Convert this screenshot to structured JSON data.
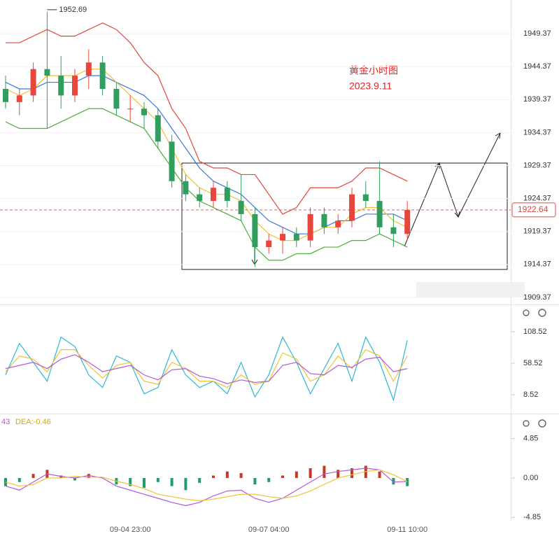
{
  "chart_data": [
    {
      "type": "candlestick",
      "open": [
        1941,
        1939,
        1940,
        1944,
        1943,
        1940,
        1943,
        1945,
        1941,
        1938,
        1938,
        1937,
        1933,
        1927,
        1925,
        1924,
        1926,
        1924,
        1922,
        1917,
        1918,
        1919,
        1918,
        1922,
        1920,
        1921,
        1925,
        1924,
        1920,
        1919
      ],
      "high": [
        1943,
        1941,
        1945,
        1952.69,
        1946,
        1944,
        1947,
        1946,
        1942,
        1940,
        1939,
        1938,
        1934,
        1928,
        1926,
        1927,
        1927,
        1928,
        1923,
        1919,
        1920,
        1920,
        1923,
        1923,
        1922,
        1926,
        1927,
        1930,
        1922,
        1924
      ],
      "low": [
        1938,
        1937,
        1939,
        1935,
        1938,
        1939,
        1941,
        1940,
        1937,
        1936,
        1935,
        1932,
        1926,
        1924,
        1923,
        1923,
        1923,
        1921,
        1914,
        1916,
        1916,
        1917,
        1917,
        1919,
        1919,
        1920,
        1923,
        1919,
        1917,
        1918
      ],
      "close": [
        1939,
        1940,
        1944,
        1943,
        1940,
        1943,
        1945,
        1941,
        1938,
        1938,
        1937,
        1933,
        1927,
        1925,
        1924,
        1926,
        1924,
        1922,
        1917,
        1918,
        1919,
        1918,
        1922,
        1920,
        1921,
        1925,
        1924,
        1920,
        1919,
        1922.64
      ],
      "up_color": "#e8453c",
      "down_color": "#2f9e5f",
      "series": [
        {
          "color": "#e0483d",
          "values": [
            1948,
            1948,
            1949,
            1950,
            1949,
            1949,
            1950,
            1951,
            1950,
            1948,
            1945,
            1943,
            1938,
            1935,
            1930,
            1929,
            1929,
            1928,
            1928,
            1925,
            1922,
            1923,
            1926,
            1926,
            1926,
            1927,
            1929,
            1929,
            1928,
            1927
          ]
        },
        {
          "color": "#3b78d8",
          "values": [
            1942,
            1941,
            1941,
            1942,
            1942,
            1942,
            1943,
            1943,
            1942,
            1941,
            1940,
            1938,
            1935,
            1932,
            1929,
            1927,
            1926,
            1925,
            1923,
            1921,
            1920,
            1919,
            1919,
            1920,
            1921,
            1921,
            1922,
            1922,
            1922,
            1921
          ]
        },
        {
          "color": "#4caf3a",
          "values": [
            1936,
            1935,
            1935,
            1935,
            1936,
            1937,
            1938,
            1938,
            1937,
            1936,
            1935,
            1932,
            1929,
            1926,
            1924,
            1923,
            1922,
            1921,
            1917,
            1915,
            1915,
            1916,
            1916,
            1917,
            1917,
            1918,
            1918,
            1919,
            1918,
            1917
          ]
        },
        {
          "color": "#f2c230",
          "values": [
            1941,
            1940,
            1941,
            1943,
            1943,
            1943,
            1944,
            1944,
            1942,
            1940,
            1938,
            1936,
            1932,
            1928,
            1926,
            1925,
            1925,
            1924,
            1921,
            1919,
            1918,
            1918,
            1919,
            1920,
            1920,
            1922,
            1923,
            1923,
            1921,
            1920
          ]
        }
      ],
      "annotations": [
        "黄金小时图",
        "2023.9.11"
      ],
      "ylim": [
        1908.3,
        1954.48
      ],
      "yticks": [
        1909.37,
        1914.37,
        1919.37,
        1924.37,
        1929.37,
        1934.37,
        1939.37,
        1944.37,
        1949.37
      ],
      "grid": true
    },
    {
      "type": "line",
      "series": [
        {
          "color": "#2bb7d9",
          "values": [
            40,
            90,
            60,
            30,
            100,
            85,
            40,
            20,
            70,
            60,
            10,
            20,
            80,
            40,
            20,
            30,
            10,
            60,
            5,
            40,
            100,
            60,
            10,
            50,
            90,
            30,
            100,
            60,
            0,
            95
          ]
        },
        {
          "color": "#f2c230",
          "values": [
            45,
            70,
            65,
            45,
            80,
            80,
            55,
            35,
            55,
            60,
            30,
            25,
            60,
            50,
            30,
            30,
            20,
            40,
            25,
            30,
            75,
            65,
            30,
            40,
            70,
            50,
            80,
            70,
            30,
            70
          ]
        },
        {
          "color": "#b05ad8",
          "values": [
            50,
            55,
            60,
            50,
            65,
            72,
            60,
            45,
            50,
            55,
            40,
            32,
            48,
            50,
            38,
            34,
            26,
            32,
            28,
            30,
            55,
            60,
            42,
            40,
            55,
            52,
            65,
            68,
            45,
            50
          ]
        }
      ],
      "ylim": [
        -20.4,
        149.6
      ],
      "yticks": [
        8.52,
        58.52,
        108.52
      ]
    },
    {
      "type": "macd",
      "categories": [
        null,
        null,
        null,
        null,
        null,
        null,
        null,
        null,
        null,
        "09-04 23:00",
        null,
        null,
        null,
        null,
        null,
        null,
        null,
        null,
        null,
        "09-07 04:00",
        null,
        null,
        null,
        null,
        null,
        null,
        null,
        null,
        null,
        "09-11 10:00"
      ],
      "legend": [
        "43",
        "DEA:-0.46"
      ],
      "histogram": {
        "up_color": "#c0392b",
        "down_color": "#1e9e6a",
        "values": [
          -1,
          -0.5,
          0.5,
          1,
          0.3,
          -0.3,
          0.5,
          0,
          -0.8,
          -1,
          -1.2,
          -0.5,
          -1,
          -1.5,
          -0.6,
          0.3,
          0.8,
          0.6,
          -0.8,
          -0.5,
          0.3,
          0.8,
          1.2,
          1.5,
          1,
          1.2,
          1.5,
          0.8,
          -0.8,
          -1
        ]
      },
      "series": [
        {
          "color": "#b05ad8",
          "values": [
            -1,
            -1.5,
            -0.5,
            0.5,
            0.2,
            0,
            0.3,
            0,
            -1,
            -1.5,
            -2,
            -2.5,
            -3,
            -3.4,
            -3,
            -2.2,
            -1.6,
            -1.5,
            -2.5,
            -3,
            -2.5,
            -1.5,
            -0.5,
            0.5,
            0.8,
            1,
            1.2,
            1,
            -0.5,
            -0.43
          ]
        },
        {
          "color": "#f2c230",
          "values": [
            -0.5,
            -1,
            -0.8,
            0,
            0,
            0.2,
            0.1,
            0.1,
            -0.4,
            -0.8,
            -1.3,
            -2,
            -2.3,
            -2.6,
            -2.8,
            -2.6,
            -2.3,
            -2,
            -2,
            -2.3,
            -2.5,
            -2.2,
            -1.6,
            -0.8,
            0,
            0.4,
            0.8,
            1,
            0.4,
            -0.46
          ]
        }
      ],
      "ylim": [
        -6.89,
        7.83
      ],
      "yticks": [
        -4.85,
        {
          "value": 0,
          "label": "0.00"
        },
        4.85
      ]
    }
  ]
}
